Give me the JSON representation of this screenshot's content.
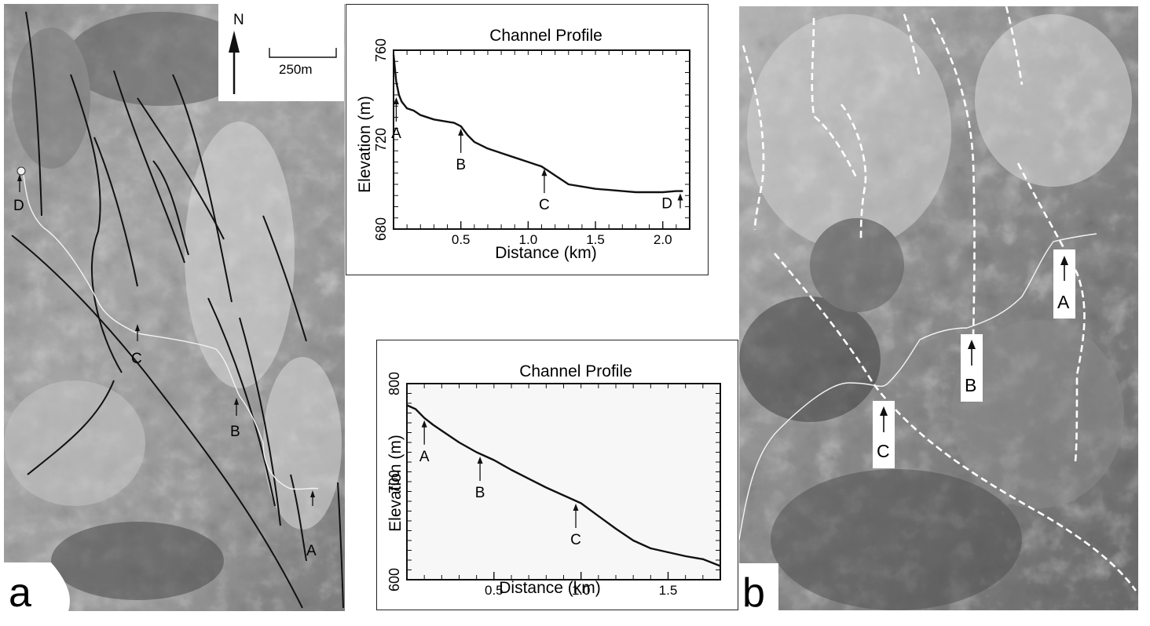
{
  "panel_a": {
    "label": "a",
    "north_label": "N",
    "scale_label": "250m",
    "markers": [
      "A",
      "B",
      "C",
      "D"
    ]
  },
  "panel_b": {
    "label": "b",
    "markers": [
      "A",
      "B",
      "C"
    ]
  },
  "colors": {
    "hillshade_light": "#cfcfcf",
    "hillshade_dark": "#5a5a5a",
    "fault_line": "#111111",
    "channel_line": "#f4f4f4",
    "profile_line": "#111111"
  },
  "chart_data": [
    {
      "type": "line",
      "title": "Channel Profile",
      "xlabel": "Distance (km)",
      "ylabel": "Elevation (m)",
      "xlim": [
        0,
        2.2
      ],
      "ylim": [
        680,
        760
      ],
      "xticks": [
        0.5,
        1.0,
        1.5,
        2.0
      ],
      "xtick_labels": [
        "0.5",
        "1.0",
        "1.5",
        "2.0"
      ],
      "yticks": [
        680,
        720,
        760
      ],
      "ytick_labels": [
        "680",
        "720",
        "760"
      ],
      "grid": false,
      "series": [
        {
          "x": [
            0,
            0.01,
            0.02,
            0.04,
            0.06,
            0.1,
            0.15,
            0.2,
            0.3,
            0.4,
            0.45,
            0.5,
            0.55,
            0.6,
            0.7,
            0.8,
            0.9,
            1.0,
            1.05,
            1.1,
            1.15,
            1.2,
            1.25,
            1.3,
            1.4,
            1.5,
            1.6,
            1.7,
            1.8,
            1.9,
            2.0,
            2.1,
            2.15
          ],
          "y": [
            758,
            752,
            746,
            740,
            737,
            734,
            733,
            731,
            729,
            728,
            727.5,
            726,
            722,
            719,
            716,
            714,
            712,
            710,
            709,
            708,
            706,
            704,
            702,
            700,
            699,
            698,
            697.5,
            697,
            696.5,
            696.5,
            696.5,
            697,
            697
          ]
        }
      ],
      "annotations": [
        {
          "label": "A",
          "x": 0.02,
          "y": 740
        },
        {
          "label": "B",
          "x": 0.5,
          "y": 726
        },
        {
          "label": "C",
          "x": 1.12,
          "y": 708
        },
        {
          "label": "D",
          "x": 2.13,
          "y": 697
        }
      ]
    },
    {
      "type": "line",
      "title": "Channel Profile",
      "xlabel": "Distance (km)",
      "ylabel": "Elevation (m)",
      "xlim": [
        0,
        1.8
      ],
      "ylim": [
        600,
        800
      ],
      "xticks": [
        0.5,
        1.0,
        1.5
      ],
      "xtick_labels": [
        "0.5",
        "1.0",
        "1.5"
      ],
      "yticks": [
        600,
        700,
        800
      ],
      "ytick_labels": [
        "600",
        "700",
        "800"
      ],
      "grid": false,
      "series": [
        {
          "x": [
            0,
            0.05,
            0.1,
            0.15,
            0.2,
            0.3,
            0.4,
            0.5,
            0.6,
            0.7,
            0.8,
            0.9,
            0.95,
            1.0,
            1.1,
            1.2,
            1.3,
            1.4,
            1.5,
            1.6,
            1.7,
            1.8
          ],
          "y": [
            778,
            774,
            765,
            758,
            752,
            740,
            730,
            722,
            712,
            703,
            694,
            686,
            682,
            678,
            665,
            652,
            640,
            632,
            628,
            624,
            621,
            614
          ]
        }
      ],
      "annotations": [
        {
          "label": "A",
          "x": 0.1,
          "y": 765
        },
        {
          "label": "B",
          "x": 0.42,
          "y": 728
        },
        {
          "label": "C",
          "x": 0.97,
          "y": 680
        }
      ]
    }
  ]
}
